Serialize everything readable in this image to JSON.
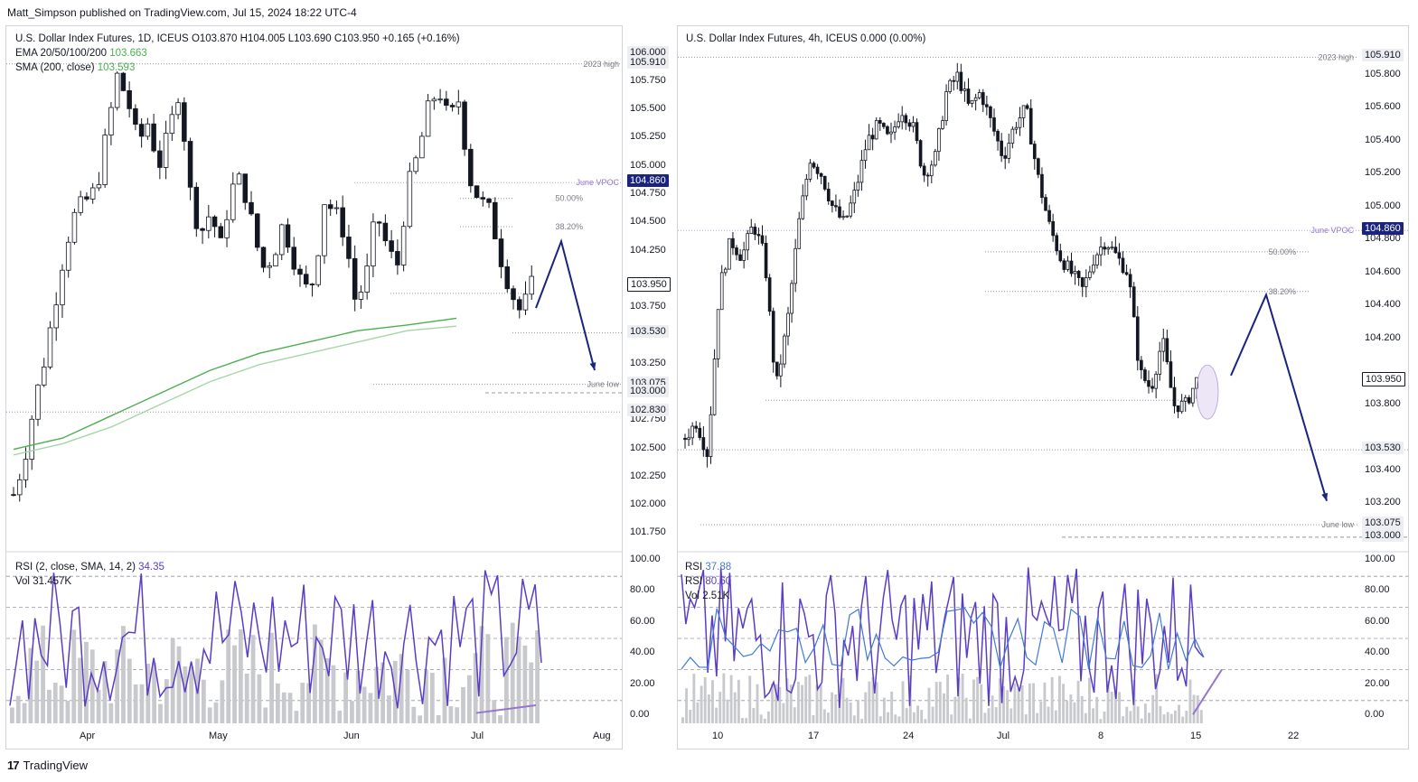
{
  "header": {
    "published": "Matt_Simpson published on TradingView.com, Jul 15, 2024 18:22 UTC-4"
  },
  "footer": {
    "brand": "TradingView"
  },
  "left_panel": {
    "title": "U.S. Dollar Index Futures, 1D, ICEUS",
    "ohlc": "O103.870  H104.005  L103.690  C103.950  +0.165 (+0.16%)",
    "ema_label": "EMA 20/50/100/200",
    "ema_value": "103.663",
    "sma_label": "SMA (200, close)",
    "sma_value": "103.593",
    "rsi_label": "RSI (2, close, SMA, 14, 2)",
    "rsi_value": "34.35",
    "vol_label": "Vol",
    "vol_value": "31.457K",
    "annotations": {
      "high2023": "2023 high",
      "june_vpoc": "June VPOC",
      "fib50": "50.00%",
      "fib382": "38.20%",
      "june_low": "June low"
    },
    "price_ticks": [
      "105.750",
      "105.500",
      "105.250",
      "105.000",
      "104.750",
      "104.500",
      "104.250",
      "103.750",
      "103.250",
      "102.750",
      "102.500",
      "102.250",
      "102.000",
      "101.750"
    ],
    "badges": {
      "high": "106.000",
      "high2": "105.910",
      "vpoc": "104.860",
      "last": "103.950",
      "lvl1": "103.530",
      "lvl2": "103.075",
      "lvl3": "103.000",
      "lvl4": "102.830"
    },
    "rsi_ticks": [
      "100.00",
      "80.00",
      "60.00",
      "40.00",
      "20.00",
      "0.00"
    ],
    "x_ticks": [
      "Apr",
      "May",
      "Jun",
      "Jul",
      "Aug"
    ]
  },
  "right_panel": {
    "title": "U.S. Dollar Index Futures, 4h, ICEUS",
    "ohlc": "0.000 (0.00%)",
    "rsi_label": "RSI",
    "rsi_value": "37.88",
    "rsi2_label": "RSI",
    "rsi2_value": "80.60",
    "vol_label": "Vol",
    "vol_value": "2.51K",
    "annotations": {
      "high2023": "2023 high",
      "june_vpoc": "June VPOC",
      "fib50": "50.00%",
      "fib382": "38.20%",
      "june_low": "June low"
    },
    "price_ticks": [
      "105.800",
      "105.600",
      "105.400",
      "105.200",
      "105.000",
      "104.800",
      "104.600",
      "104.400",
      "104.200",
      "103.800",
      "103.400",
      "103.200"
    ],
    "badges": {
      "high": "105.910",
      "vpoc": "104.860",
      "last": "103.950",
      "lvl1": "103.530",
      "lvl2": "103.075",
      "lvl3": "103.000"
    },
    "rsi_ticks": [
      "100.00",
      "80.00",
      "60.00",
      "40.00",
      "20.00",
      "0.00"
    ],
    "x_ticks": [
      "10",
      "17",
      "24",
      "Jul",
      "8",
      "15",
      "22"
    ]
  },
  "colors": {
    "candle": "#131722",
    "sma_dark": "#4caf50",
    "sma_light": "#a5d6a7",
    "vpoc": "#b39ddb",
    "arrow": "#1a237e",
    "rsi": "#5b3cc4",
    "rsi_sma": "#3f7ad6",
    "volume": "#c8c9cc"
  },
  "chart_data": [
    {
      "type": "candlestick",
      "title": "U.S. Dollar Index Futures, 1D, ICEUS",
      "x_range": [
        "Mar",
        "Aug"
      ],
      "ylim": [
        101.65,
        106.1
      ],
      "close_path": [
        102.1,
        102.4,
        102.9,
        103.3,
        103.8,
        104.3,
        104.6,
        104.7,
        104.8,
        105.3,
        105.8,
        105.6,
        105.2,
        105.4,
        105.0,
        105.3,
        105.7,
        104.8,
        104.4,
        104.6,
        104.3,
        104.8,
        104.9,
        104.5,
        104.1,
        104.2,
        104.5,
        104.2,
        103.9,
        104.0,
        104.7,
        104.6,
        104.4,
        103.8,
        104.0,
        104.6,
        104.3,
        104.1,
        104.8,
        105.1,
        105.5,
        105.7,
        105.4,
        105.6,
        104.9,
        104.7,
        104.6,
        104.2,
        103.9,
        103.7,
        103.95
      ],
      "ema_200": [
        102.5,
        102.6,
        102.8,
        103.0,
        103.2,
        103.35,
        103.45,
        103.55,
        103.6,
        103.66
      ],
      "sma_200": [
        102.45,
        102.55,
        102.7,
        102.9,
        103.1,
        103.25,
        103.35,
        103.45,
        103.55,
        103.59
      ],
      "rsi_last": 34.35
    },
    {
      "type": "candlestick",
      "title": "U.S. Dollar Index Futures, 4h, ICEUS",
      "x_range": [
        "Jun 6",
        "Jul 25"
      ],
      "ylim": [
        102.95,
        106.0
      ],
      "close_path": [
        103.6,
        103.7,
        103.5,
        104.5,
        104.8,
        104.7,
        104.9,
        104.7,
        103.9,
        104.3,
        104.9,
        105.3,
        105.2,
        105.0,
        104.9,
        105.1,
        105.4,
        105.5,
        105.4,
        105.6,
        105.5,
        105.2,
        105.3,
        105.7,
        105.8,
        105.6,
        105.7,
        105.5,
        105.3,
        105.5,
        105.6,
        105.2,
        104.9,
        104.7,
        104.6,
        104.5,
        104.7,
        104.8,
        104.7,
        104.6,
        104.0,
        103.9,
        104.2,
        103.8,
        103.8,
        103.95
      ],
      "rsi_last": 37.88,
      "rsi2_last": 80.6
    }
  ]
}
